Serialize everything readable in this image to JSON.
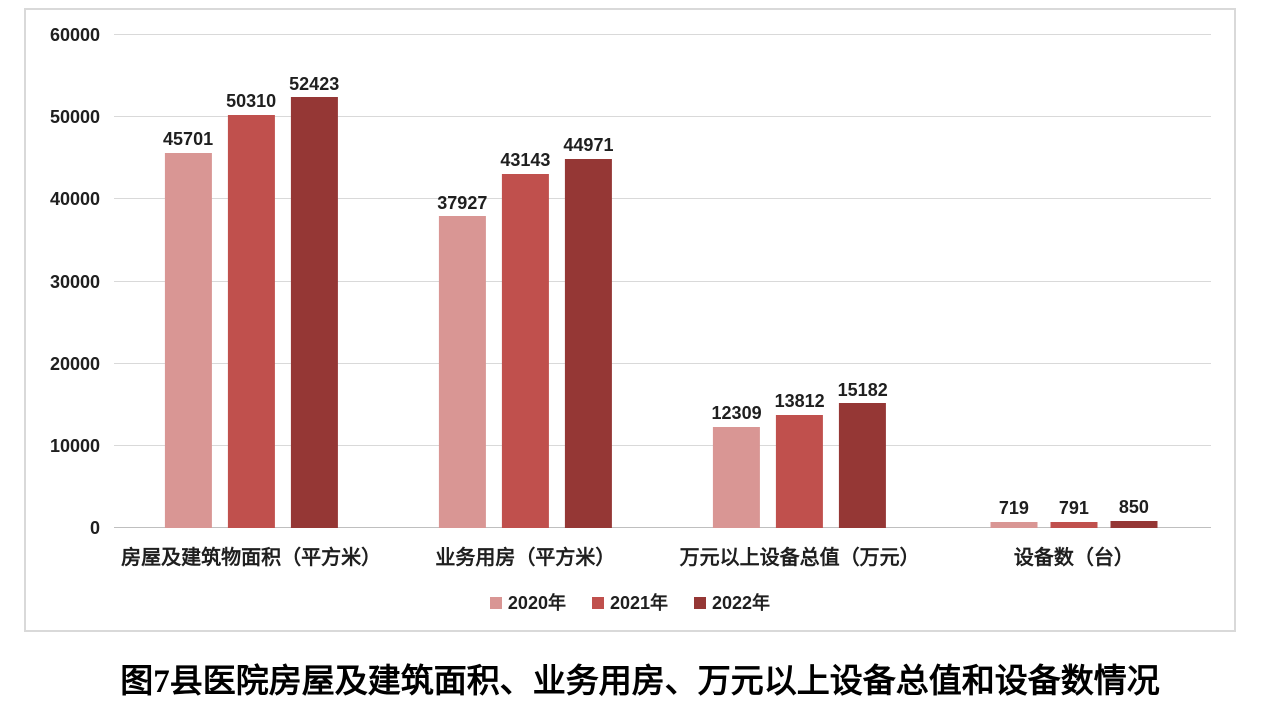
{
  "caption": "图7县医院房屋及建筑面积、业务用房、万元以上设备总值和设备数情况",
  "colors": {
    "series_2020": "#d99694",
    "series_2021": "#c0504d",
    "series_2022": "#953735",
    "gridline": "#d9d9d9",
    "axis_baseline": "#bfbfbf",
    "frame_border": "#d9d9d9"
  },
  "chart_data": {
    "type": "bar",
    "title": "",
    "categories": [
      "房屋及建筑物面积（平方米）",
      "业务用房（平方米）",
      "万元以上设备总值（万元）",
      "设备数（台）"
    ],
    "series": [
      {
        "name": "2020年",
        "color": "#d99694",
        "values": [
          45701,
          37927,
          12309,
          719
        ]
      },
      {
        "name": "2021年",
        "color": "#c0504d",
        "values": [
          50310,
          43143,
          13812,
          791
        ]
      },
      {
        "name": "2022年",
        "color": "#953735",
        "values": [
          52423,
          44971,
          15182,
          850
        ]
      }
    ],
    "ylabel": "",
    "xlabel": "",
    "ylim": [
      0,
      60000
    ],
    "y_ticks": [
      0,
      10000,
      20000,
      30000,
      40000,
      50000,
      60000
    ],
    "grid": true,
    "legend_position": "bottom",
    "data_labels": true
  }
}
